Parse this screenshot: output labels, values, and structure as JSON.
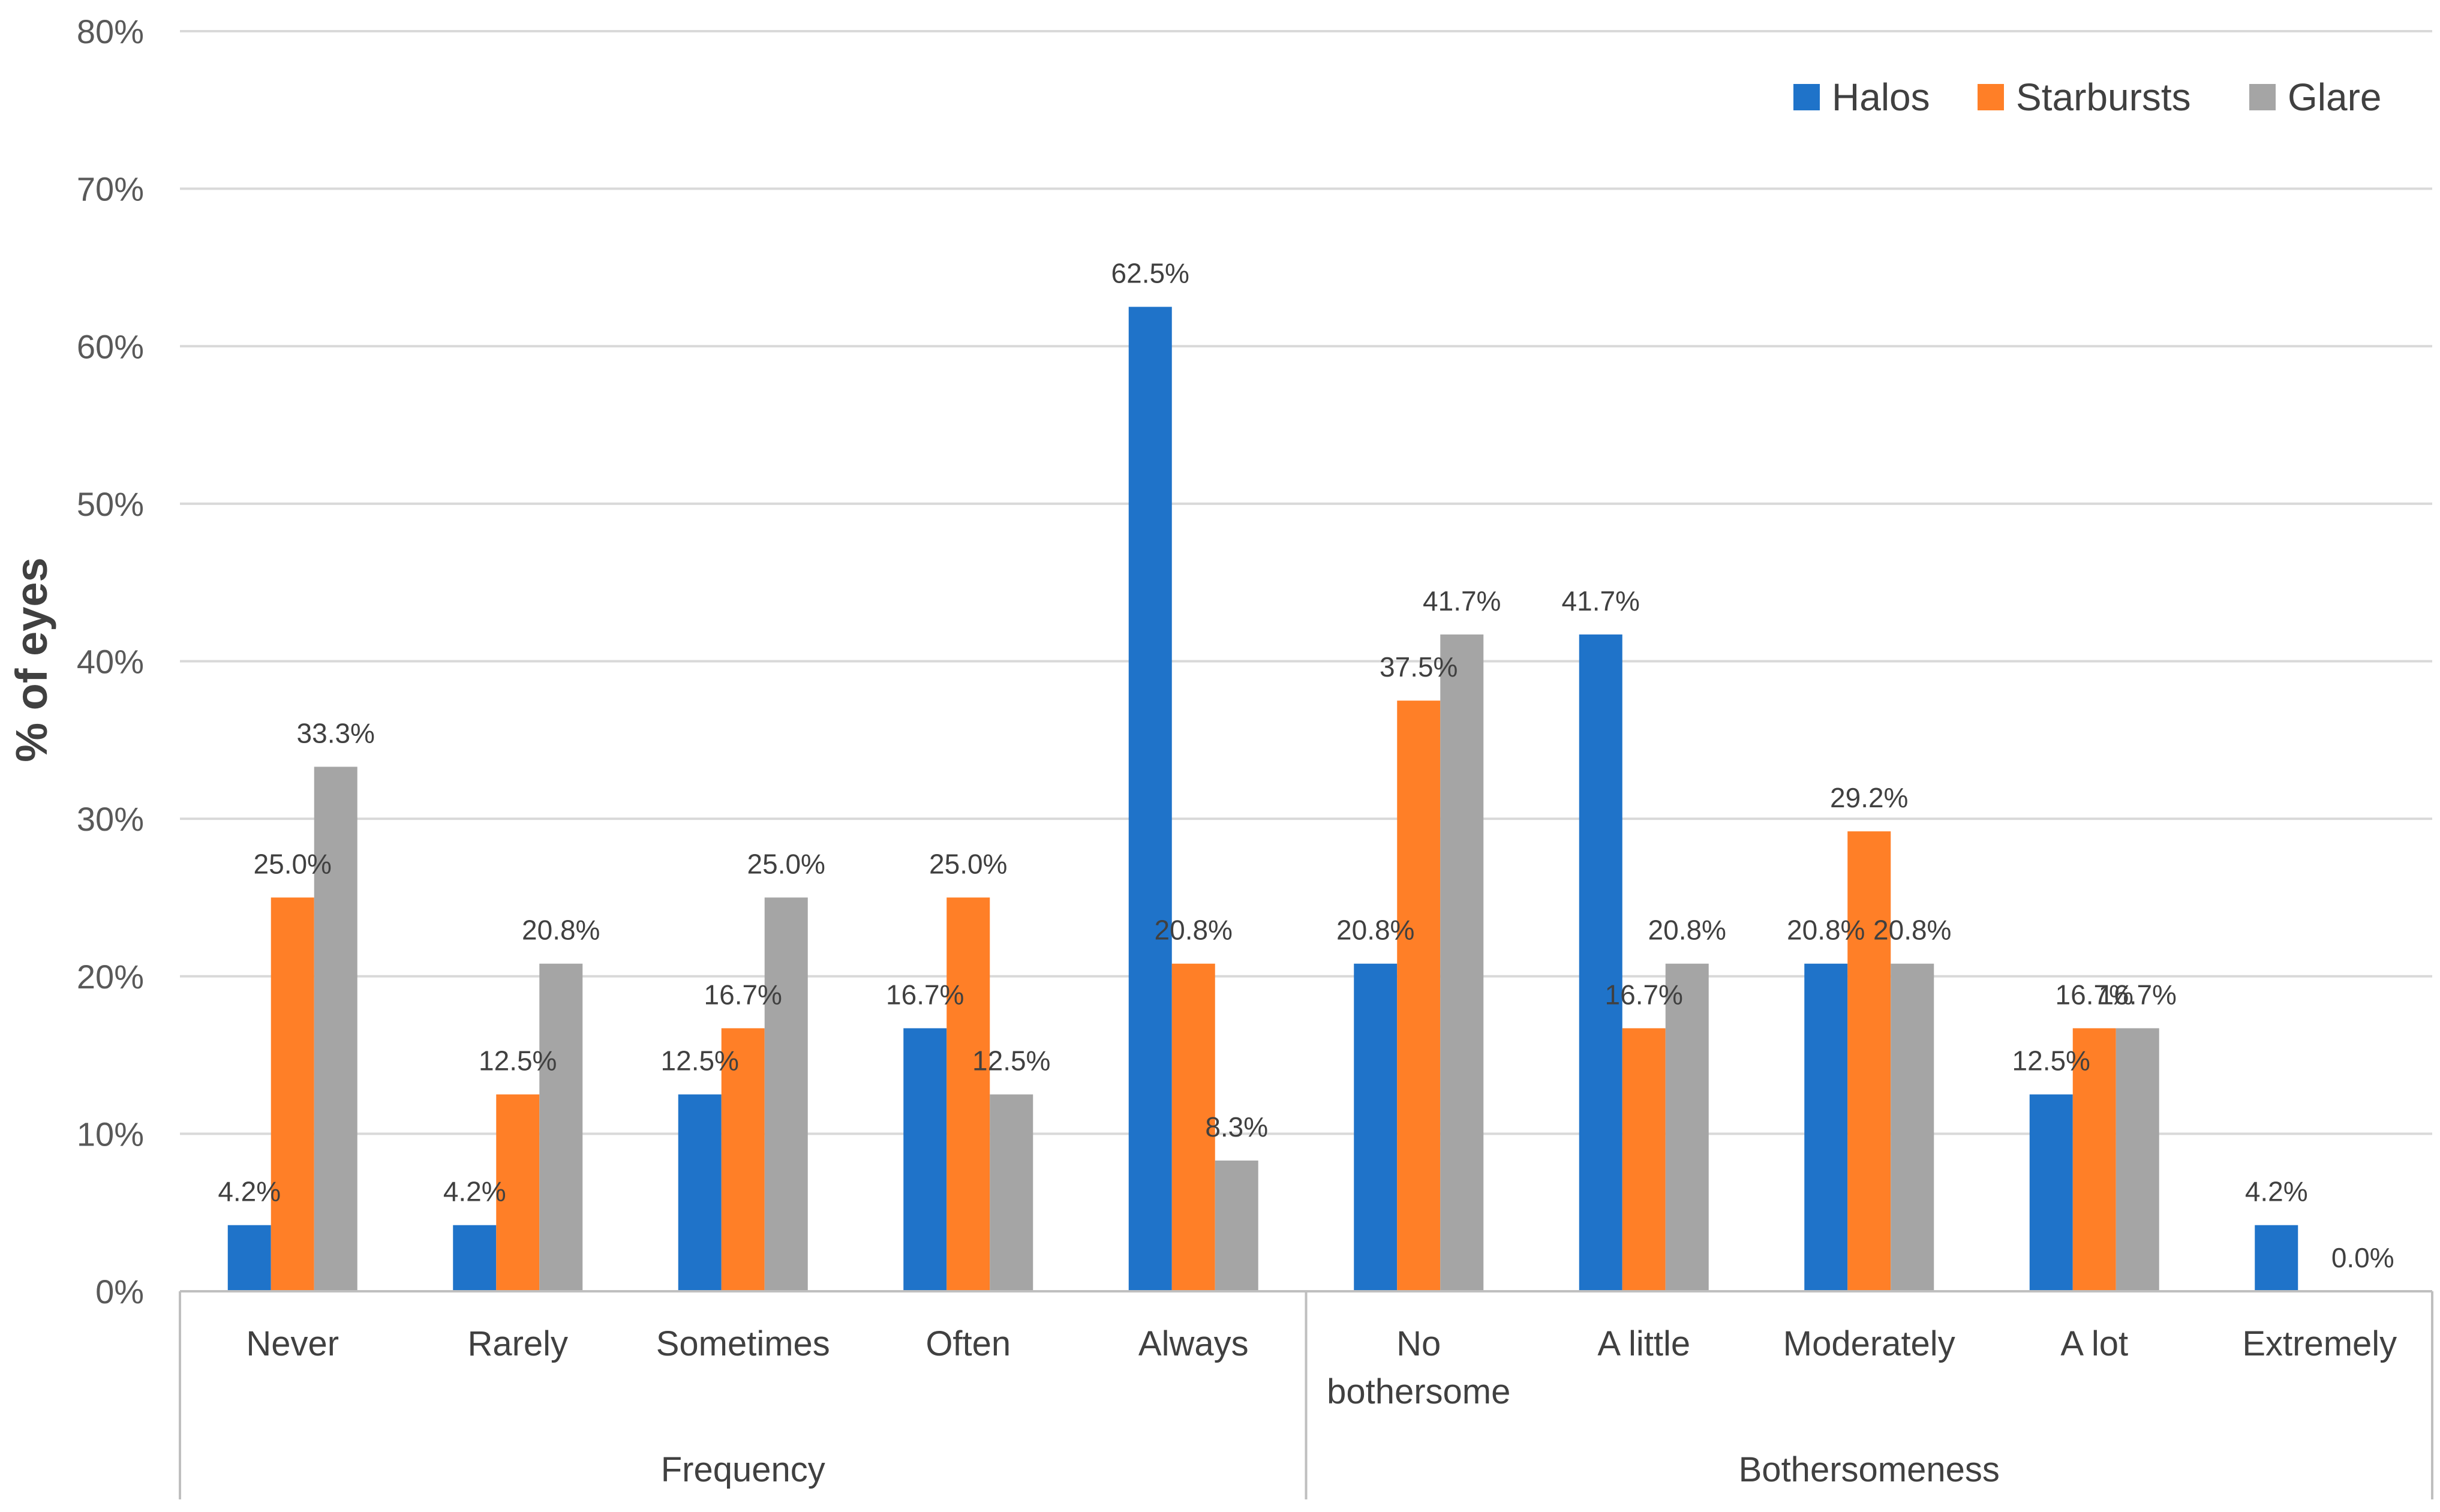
{
  "chart_data": {
    "type": "bar",
    "title": "",
    "ylabel": "% of eyes",
    "xlabel": "",
    "ylim": [
      0,
      80
    ],
    "yticks": [
      0,
      10,
      20,
      30,
      40,
      50,
      60,
      70,
      80
    ],
    "ytick_labels": [
      "0%",
      "10%",
      "20%",
      "30%",
      "40%",
      "50%",
      "60%",
      "70%",
      "80%"
    ],
    "grid": true,
    "legend_position": "top-right",
    "categories": [
      [
        "Never"
      ],
      [
        "Rarely"
      ],
      [
        "Sometimes"
      ],
      [
        "Often"
      ],
      [
        "Always"
      ],
      [
        "No",
        "bothersome"
      ],
      [
        "A little"
      ],
      [
        "Moderately"
      ],
      [
        "A lot"
      ],
      [
        "Extremely"
      ]
    ],
    "groups": [
      {
        "label": "Frequency",
        "start": 0,
        "end": 4
      },
      {
        "label": "Bothersomeness",
        "start": 5,
        "end": 9
      }
    ],
    "series": [
      {
        "name": "Halos",
        "color": "#1f73c9",
        "values": [
          4.2,
          4.2,
          12.5,
          16.7,
          62.5,
          20.8,
          41.7,
          20.8,
          12.5,
          4.2
        ],
        "labels": [
          "4.2%",
          "4.2%",
          "12.5%",
          "16.7%",
          "62.5%",
          "20.8%",
          "41.7%",
          "20.8%",
          "12.5%",
          "4.2%"
        ]
      },
      {
        "name": "Starbursts",
        "color": "#ff7f27",
        "values": [
          25.0,
          12.5,
          16.7,
          25.0,
          20.8,
          37.5,
          16.7,
          29.2,
          16.7,
          null
        ],
        "labels": [
          "25.0%",
          "12.5%",
          "16.7%",
          "25.0%",
          "20.8%",
          "37.5%",
          "16.7%",
          "29.2%",
          "16.7%",
          null
        ]
      },
      {
        "name": "Glare",
        "color": "#a5a5a5",
        "values": [
          33.3,
          20.8,
          25.0,
          12.5,
          8.3,
          41.7,
          20.8,
          20.8,
          16.7,
          0.0
        ],
        "labels": [
          "33.3%",
          "20.8%",
          "25.0%",
          "12.5%",
          "8.3%",
          "41.7%",
          "20.8%",
          "20.8%",
          "16.7%",
          "0.0%"
        ]
      }
    ]
  }
}
